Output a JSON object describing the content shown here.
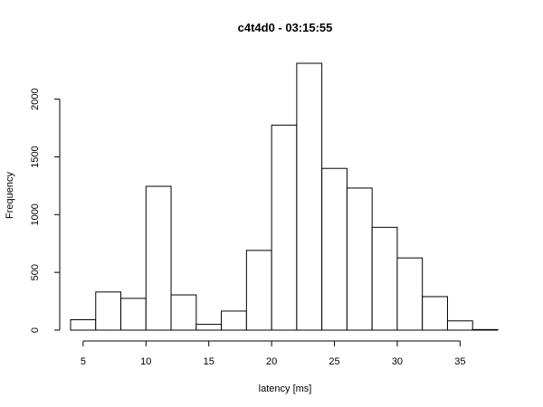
{
  "chart_data": {
    "type": "bar",
    "title": "c4t4d0 - 03:15:55",
    "xlabel": "latency [ms]",
    "ylabel": "Frequency",
    "bin_width": 2,
    "bins_start": [
      4,
      6,
      8,
      10,
      12,
      14,
      16,
      18,
      20,
      22,
      24,
      26,
      28,
      30,
      32,
      34,
      36
    ],
    "values": [
      90,
      330,
      275,
      1245,
      305,
      50,
      165,
      690,
      1775,
      2310,
      1400,
      1230,
      890,
      625,
      290,
      80,
      5
    ],
    "xlim": [
      4,
      38
    ],
    "ylim": [
      0,
      2310
    ],
    "x_ticks": [
      5,
      10,
      15,
      20,
      25,
      30,
      35
    ],
    "y_ticks": [
      0,
      500,
      1000,
      1500,
      2000
    ],
    "grid": false,
    "legend": "none"
  }
}
